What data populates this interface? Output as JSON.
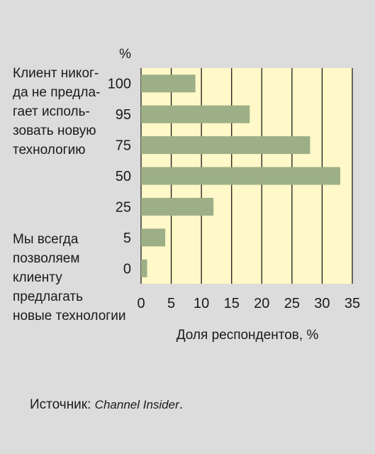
{
  "chart_data": {
    "type": "bar",
    "orientation": "horizontal",
    "y_unit": "%",
    "categories": [
      "100",
      "95",
      "75",
      "50",
      "25",
      "5",
      "0"
    ],
    "values": [
      9,
      18,
      28,
      33,
      12,
      4,
      1
    ],
    "xlabel": "Доля респондентов, %",
    "xlim": [
      0,
      35
    ],
    "xticks": [
      0,
      5,
      10,
      15,
      20,
      25,
      30,
      35
    ],
    "grid": true,
    "annotations": {
      "top": "Клиент никог-\nда не предла-\nгает исполь-\nзовать новую\nтехнологию",
      "bottom": "Мы всегда\nпозволяем\nклиенту\nпредлагать\nновые технологии"
    },
    "colors": {
      "bar": "#9caf86",
      "plot_bg": "#fff8c8",
      "grid": "#1a1a1a",
      "page_bg": "#dcdcdc"
    }
  },
  "source": {
    "label": "Источник: ",
    "name": "Channel Insider",
    "suffix": "."
  }
}
